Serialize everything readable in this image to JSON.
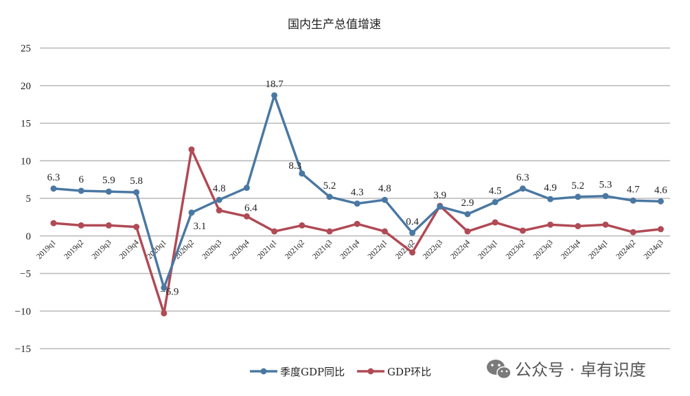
{
  "chart_data": {
    "type": "line",
    "title": "国内生产总值增速",
    "xlabel": "",
    "ylabel": "",
    "ylim": [
      -15,
      25
    ],
    "yticks": [
      25,
      20,
      15,
      10,
      5,
      0,
      -5,
      -10,
      -15
    ],
    "ytick_labels": [
      "25",
      "20",
      "15",
      "10",
      "5",
      "0",
      "−5",
      "−10",
      "−15"
    ],
    "grid": true,
    "legend_position": "bottom-center",
    "categories": [
      "2019q1",
      "2019q2",
      "2019q3",
      "2019q4",
      "2020q1",
      "2020q2",
      "2020q3",
      "2020q4",
      "2021q1",
      "2021q2",
      "2021q3",
      "2021q4",
      "2022q1",
      "2022q2",
      "2022q3",
      "2022q4",
      "2023q1",
      "2023q2",
      "2023q3",
      "2023q4",
      "2024q1",
      "2024q2",
      "2024q3"
    ],
    "series": [
      {
        "name": "季度GDP同比",
        "color": "#4a78a2",
        "values": [
          6.3,
          6.0,
          5.9,
          5.8,
          -6.9,
          3.1,
          4.8,
          6.4,
          18.7,
          8.3,
          5.2,
          4.3,
          4.8,
          0.4,
          3.9,
          2.9,
          4.5,
          6.3,
          4.9,
          5.2,
          5.3,
          4.7,
          4.6
        ],
        "labels": [
          "6.3",
          "6",
          "5.9",
          "5.8",
          "−6.9",
          "3.1",
          "4.8",
          "6.4",
          "18.7",
          "8.3",
          "5.2",
          "4.3",
          "4.8",
          "0.4",
          "3.9",
          "2.9",
          "4.5",
          "6.3",
          "4.9",
          "5.2",
          "5.3",
          "4.7",
          "4.6"
        ]
      },
      {
        "name": "GDP环比",
        "color": "#b04a55",
        "values": [
          1.7,
          1.4,
          1.4,
          1.2,
          -10.3,
          11.5,
          3.4,
          2.6,
          0.6,
          1.4,
          0.6,
          1.6,
          0.6,
          -2.2,
          4.0,
          0.6,
          1.8,
          0.7,
          1.5,
          1.3,
          1.5,
          0.5,
          0.9
        ]
      }
    ]
  },
  "watermark": {
    "text": "公众号 · 卓有识度",
    "icon": "wechat-icon"
  }
}
